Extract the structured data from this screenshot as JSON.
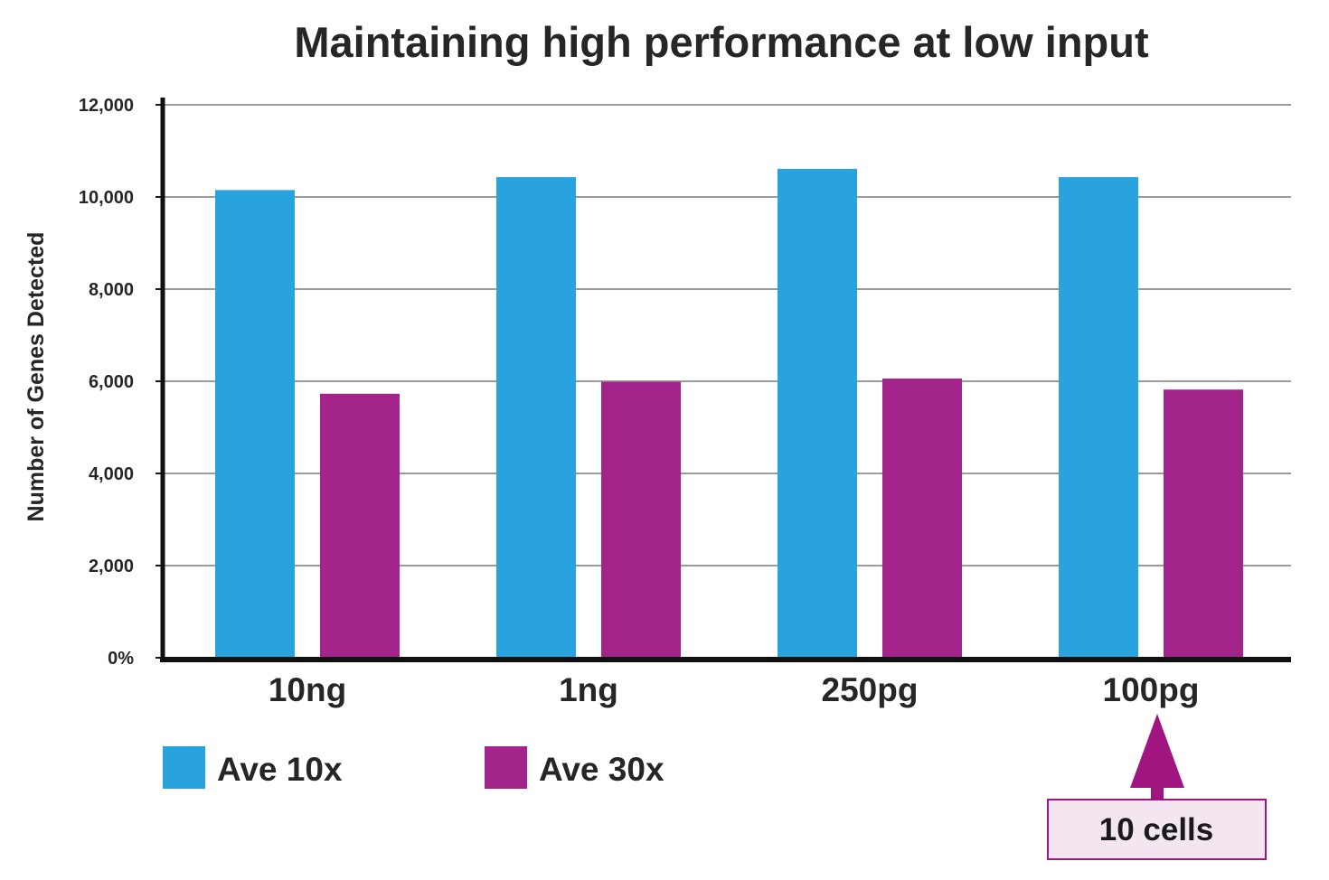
{
  "chart_data": {
    "type": "bar",
    "title": "Maintaining high performance at low input",
    "xlabel": "",
    "ylabel": "Number of Genes Detected",
    "categories": [
      "10ng",
      "1ng",
      "250pg",
      "100pg"
    ],
    "series": [
      {
        "name": "Ave 10x",
        "color": "#29a3dd",
        "values": [
          10150,
          10430,
          10610,
          10430
        ]
      },
      {
        "name": "Ave 30x",
        "color": "#a3248a",
        "values": [
          5730,
          5990,
          6060,
          5820
        ]
      }
    ],
    "ylim": [
      0,
      12000
    ],
    "yticks": [
      0,
      2000,
      4000,
      6000,
      8000,
      10000,
      12000
    ],
    "ytick_labels": [
      "0%",
      "2,000",
      "4,000",
      "6,000",
      "8,000",
      "10,000",
      "12,000"
    ],
    "grid": true,
    "legend_position": "bottom-left",
    "annotation": {
      "text": "10 cells",
      "target_category": "100pg",
      "arrow_color": "#a0157f",
      "box_fill": "#f4e6f1",
      "box_border": "#a0157f"
    }
  }
}
